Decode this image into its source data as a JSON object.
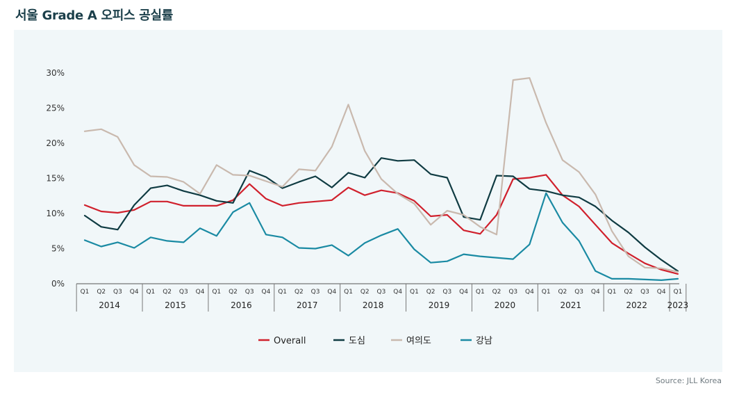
{
  "title": "서울 Grade A 오피스 공실률",
  "source": "Source: JLL Korea",
  "colors": {
    "background": "#f1f7f9",
    "title": "#1b3f4a",
    "overall": "#d0202c",
    "dosim": "#0f3b42",
    "yeouido": "#c9b9ae",
    "gangnam": "#1a8aa3"
  },
  "chart_data": {
    "type": "line",
    "title": "서울 Grade A 오피스 공실률",
    "xlabel": "",
    "ylabel": "",
    "ylim": [
      0,
      30
    ],
    "yticks": [
      "0%",
      "5%",
      "10%",
      "15%",
      "20%",
      "25%",
      "30%"
    ],
    "grid": false,
    "legend": "bottom",
    "categories": [
      "2014 Q1",
      "2014 Q2",
      "2014 Q3",
      "2014 Q4",
      "2015 Q1",
      "2015 Q2",
      "2015 Q3",
      "2015 Q4",
      "2016 Q1",
      "2016 Q2",
      "2016 Q3",
      "2016 Q4",
      "2017 Q1",
      "2017 Q2",
      "2017 Q3",
      "2017 Q4",
      "2018 Q1",
      "2018 Q2",
      "2018 Q3",
      "2018 Q4",
      "2019 Q1",
      "2019 Q2",
      "2019 Q3",
      "2019 Q4",
      "2020 Q1",
      "2020 Q2",
      "2020 Q3",
      "2020 Q4",
      "2021 Q1",
      "2021 Q2",
      "2021 Q3",
      "2021 Q4",
      "2022 Q1",
      "2022 Q2",
      "2022 Q3",
      "2022 Q4",
      "2023 Q1"
    ],
    "quarter_labels": [
      "Q1",
      "Q2",
      "Q3",
      "Q4"
    ],
    "years": [
      "2014",
      "2015",
      "2016",
      "2017",
      "2018",
      "2019",
      "2020",
      "2021",
      "2022",
      "2023"
    ],
    "series": [
      {
        "name": "Overall",
        "color": "#d0202c",
        "values": [
          11.2,
          10.3,
          10.1,
          10.5,
          11.7,
          11.7,
          11.1,
          11.1,
          11.1,
          11.9,
          14.2,
          12.1,
          11.1,
          11.5,
          11.7,
          11.9,
          13.7,
          12.6,
          13.3,
          12.9,
          11.8,
          9.6,
          9.8,
          7.6,
          7.1,
          9.8,
          14.9,
          15.1,
          15.5,
          12.6,
          11.0,
          8.4,
          5.8,
          4.3,
          2.9,
          2.0,
          1.4
        ]
      },
      {
        "name": "도심",
        "color": "#0f3b42",
        "values": [
          9.7,
          8.1,
          7.7,
          11.2,
          13.6,
          14.0,
          13.2,
          12.6,
          11.8,
          11.5,
          16.1,
          15.2,
          13.6,
          14.5,
          15.3,
          13.7,
          15.8,
          15.1,
          17.9,
          17.5,
          17.6,
          15.6,
          15.1,
          9.5,
          9.1,
          15.4,
          15.3,
          13.5,
          13.2,
          12.6,
          12.3,
          11.0,
          9.0,
          7.3,
          5.2,
          3.4,
          1.8
        ]
      },
      {
        "name": "여의도",
        "color": "#c9b9ae",
        "values": [
          21.7,
          22.0,
          20.9,
          16.9,
          15.3,
          15.2,
          14.5,
          12.8,
          16.9,
          15.5,
          15.4,
          14.6,
          13.8,
          16.3,
          16.1,
          19.5,
          25.5,
          18.9,
          14.9,
          12.8,
          11.4,
          8.4,
          10.4,
          9.8,
          8.1,
          7.0,
          29.0,
          29.3,
          22.9,
          17.6,
          15.9,
          12.7,
          7.5,
          3.9,
          2.3,
          2.2,
          1.7
        ]
      },
      {
        "name": "강남",
        "color": "#1a8aa3",
        "values": [
          6.2,
          5.3,
          5.9,
          5.1,
          6.6,
          6.1,
          5.9,
          7.9,
          6.8,
          10.2,
          11.5,
          7.0,
          6.6,
          5.1,
          5.0,
          5.5,
          4.0,
          5.8,
          6.9,
          7.8,
          4.9,
          3.0,
          3.2,
          4.2,
          3.9,
          3.7,
          3.5,
          5.6,
          12.9,
          8.7,
          6.1,
          1.8,
          0.7,
          0.7,
          0.6,
          0.5,
          0.7
        ]
      }
    ]
  }
}
